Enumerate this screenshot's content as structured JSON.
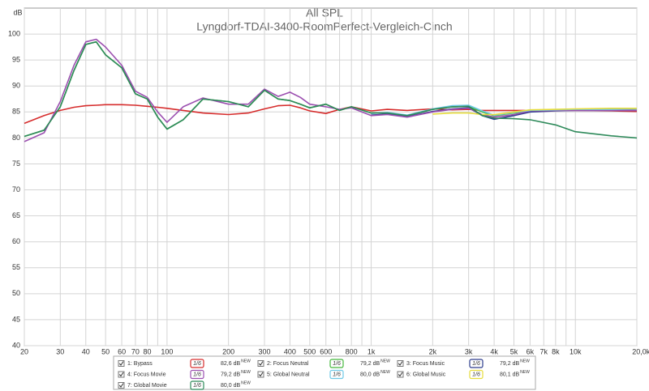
{
  "chart_data": {
    "type": "line",
    "title": "All SPL",
    "subtitle": "Lyngdorf-TDAI-3400-RoomPerfect-Vergleich-Cinch",
    "y_label": "dB",
    "log_x": true,
    "grid": true,
    "xlim": [
      20,
      20000
    ],
    "ylim": [
      40,
      105
    ],
    "yticks": [
      40,
      45,
      50,
      55,
      60,
      65,
      70,
      75,
      80,
      85,
      90,
      95,
      100
    ],
    "xticks": [
      20,
      30,
      40,
      50,
      60,
      70,
      80,
      100,
      200,
      300,
      400,
      500,
      600,
      800,
      {
        "value": 1000,
        "label": "1k"
      },
      {
        "value": 2000,
        "label": "2k"
      },
      {
        "value": 3000,
        "label": "3k"
      },
      {
        "value": 4000,
        "label": "4k"
      },
      {
        "value": 5000,
        "label": "5k"
      },
      {
        "value": 6000,
        "label": "6k"
      },
      {
        "value": 7000,
        "label": "7k"
      },
      {
        "value": 8000,
        "label": "8k"
      },
      {
        "value": 10000,
        "label": "10k"
      },
      {
        "value": 20000,
        "label": "20,0k Hz"
      }
    ],
    "xticks_unlabeled": [
      90,
      700,
      900,
      9000
    ],
    "x": [
      20,
      25,
      30,
      35,
      40,
      45,
      50,
      60,
      70,
      80,
      90,
      100,
      120,
      150,
      200,
      250,
      300,
      350,
      400,
      450,
      500,
      600,
      700,
      800,
      1000,
      1200,
      1500,
      2000,
      2500,
      3000,
      3500,
      4000,
      5000,
      6000,
      8000,
      10000,
      15000,
      20000
    ],
    "series": [
      {
        "name": "1: Bypass",
        "color": "#d62c2c",
        "smoothing": "1/6",
        "level": "82,6 dB",
        "level_tag": "NEW",
        "values": [
          82.8,
          84.3,
          85.3,
          85.9,
          86.2,
          86.3,
          86.4,
          86.4,
          86.3,
          86.1,
          85.9,
          85.7,
          85.3,
          84.8,
          84.5,
          84.8,
          85.6,
          86.2,
          86.3,
          85.8,
          85.2,
          84.7,
          85.5,
          86,
          85.2,
          85.5,
          85.3,
          85.6,
          85.4,
          85.5,
          85.3,
          85.3,
          85.3,
          85.3,
          85.3,
          85.3,
          85.2,
          85.1
        ]
      },
      {
        "name": "2: Focus Neutral",
        "color": "#44b83c",
        "smoothing": "1/6",
        "level": "79,2 dB",
        "level_tag": "NEW",
        "values": [
          80.3,
          81.5,
          86,
          93,
          98,
          98.5,
          96,
          93.5,
          88.5,
          87.5,
          84,
          81.7,
          83.5,
          87.5,
          87,
          86,
          89.2,
          87.5,
          87.2,
          86.5,
          85.8,
          86.5,
          85.3,
          86,
          84.8,
          84.8,
          84.3,
          85.5,
          86,
          86.1,
          85,
          84.3,
          84.8,
          85.2,
          85.3,
          85.4,
          85.5,
          85.6
        ]
      },
      {
        "name": "3: Focus Music",
        "color": "#2d3c8c",
        "smoothing": "1/6",
        "level": "79,2 dB",
        "level_tag": "NEW",
        "values": [
          null,
          null,
          null,
          null,
          null,
          null,
          null,
          null,
          null,
          null,
          null,
          null,
          null,
          null,
          null,
          null,
          null,
          null,
          null,
          null,
          null,
          null,
          null,
          null,
          84.4,
          84.6,
          84.1,
          85.1,
          85.6,
          85.8,
          84.3,
          83.6,
          84.3,
          85,
          85.2,
          85.3,
          85.3,
          85.3
        ]
      },
      {
        "name": "4: Focus Movie",
        "color": "#9b4fb0",
        "smoothing": "1/6",
        "level": "79,2 dB",
        "level_tag": "NEW",
        "values": [
          79.3,
          81,
          87,
          94,
          98.5,
          99,
          97.5,
          94,
          89,
          87.8,
          85,
          83,
          86,
          87.7,
          86.5,
          86.5,
          89.4,
          88,
          88.8,
          87.8,
          86.5,
          86,
          85.5,
          85.8,
          84.3,
          84.5,
          84,
          85,
          85.5,
          85.7,
          84.5,
          84,
          84.5,
          85.2,
          85.3,
          85.3,
          85.3,
          85.3
        ]
      },
      {
        "name": "5: Global Neutral",
        "color": "#6ec8e6",
        "smoothing": "1/6",
        "level": "80,0 dB",
        "level_tag": "NEW",
        "values": [
          null,
          null,
          null,
          null,
          null,
          null,
          null,
          null,
          null,
          null,
          null,
          null,
          null,
          null,
          null,
          null,
          null,
          null,
          null,
          null,
          null,
          null,
          null,
          null,
          84.7,
          84.9,
          84.4,
          85.6,
          86.2,
          86.3,
          85.2,
          84.4,
          84.9,
          85.3,
          85.4,
          85.5,
          85.5,
          85.6
        ]
      },
      {
        "name": "6: Global Music",
        "color": "#e6dc3c",
        "smoothing": "1/6",
        "level": "80,1 dB",
        "level_tag": "NEW",
        "values": [
          null,
          null,
          null,
          null,
          null,
          null,
          null,
          null,
          null,
          null,
          null,
          null,
          null,
          null,
          null,
          null,
          null,
          null,
          null,
          null,
          null,
          null,
          null,
          null,
          null,
          null,
          null,
          84.6,
          84.8,
          84.8,
          84.5,
          84.5,
          85,
          85.4,
          85.5,
          85.6,
          85.7,
          85.7
        ]
      },
      {
        "name": "7: Global Movie",
        "color": "#2e8a5a",
        "smoothing": "1/6",
        "level": "80,0 dB",
        "level_tag": "NEW",
        "values": [
          80.3,
          81.5,
          86,
          93,
          98,
          98.5,
          96,
          93.5,
          88.5,
          87.5,
          84,
          81.7,
          83.5,
          87.5,
          87,
          86,
          89.2,
          87.5,
          87.2,
          86.5,
          85.8,
          86.5,
          85.3,
          86,
          84.8,
          84.8,
          84.3,
          85.5,
          86,
          86.1,
          84.3,
          83.8,
          83.7,
          83.5,
          82.5,
          81.2,
          80.4,
          80
        ]
      }
    ]
  }
}
